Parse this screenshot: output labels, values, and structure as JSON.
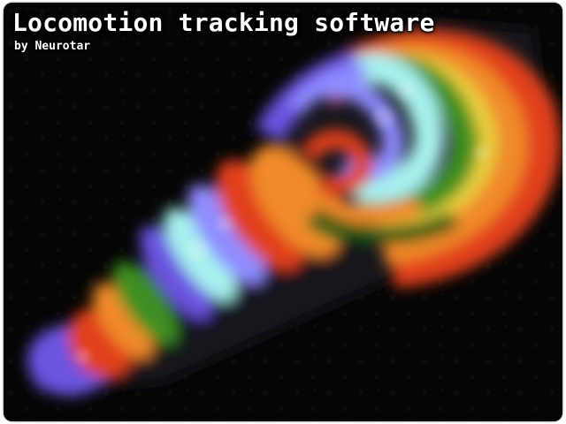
{
  "header": {
    "title": "Locomotion tracking software",
    "byline": "by Neurotar"
  },
  "artwork": {
    "name": "rainbow-spiral-trace",
    "background_color": "#050505",
    "palette": {
      "violet": "#6a54e0",
      "blue": "#8f8cff",
      "cyan": "#a8f0ee",
      "green": "#3e8f20",
      "dark_green": "#1f5a12",
      "yellow": "#e8d040",
      "orange": "#f08a2a",
      "red": "#e0401e"
    }
  }
}
